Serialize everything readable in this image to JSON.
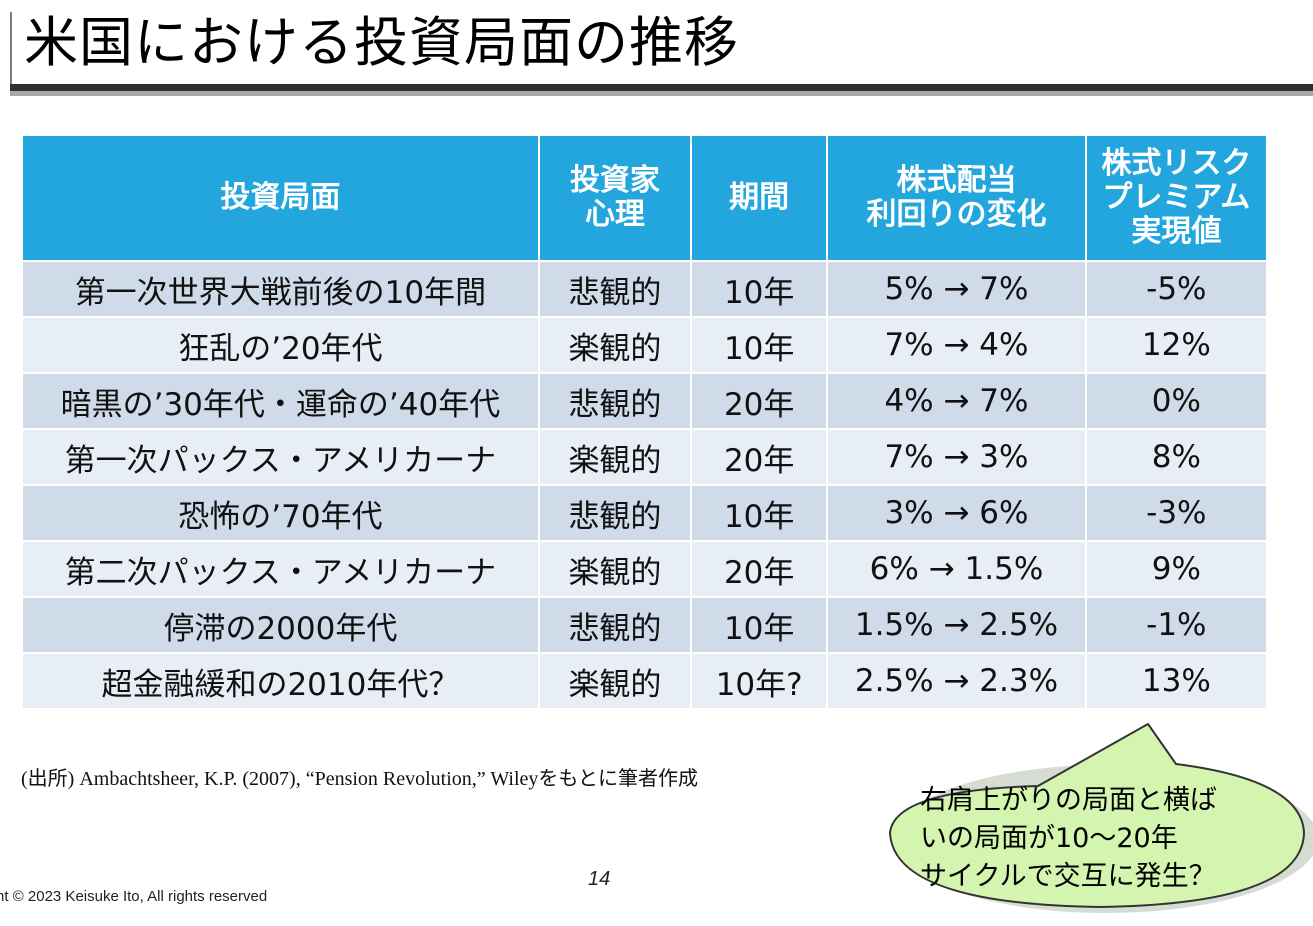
{
  "title": "米国における投資局面の推移",
  "table": {
    "headers": {
      "phase": "投資局面",
      "psychology_l1": "投資家",
      "psychology_l2": "心理",
      "period": "期間",
      "yield_l1": "株式配当",
      "yield_l2": "利回りの変化",
      "premium_l1": "株式リスク",
      "premium_l2": "プレミアム",
      "premium_l3": "実現値"
    },
    "rows": [
      {
        "phase": "第一次世界大戦前後の10年間",
        "psychology": "悲観的",
        "period": "10年",
        "yield_change": "5% → 7%",
        "premium": "-5%"
      },
      {
        "phase": "狂乱の’20年代",
        "psychology": "楽観的",
        "period": "10年",
        "yield_change": "7% → 4%",
        "premium": "12%"
      },
      {
        "phase": "暗黒の’30年代・運命の’40年代",
        "psychology": "悲観的",
        "period": "20年",
        "yield_change": "4% → 7%",
        "premium": "0%"
      },
      {
        "phase": "第一次パックス・アメリカーナ",
        "psychology": "楽観的",
        "period": "20年",
        "yield_change": "7% → 3%",
        "premium": "8%"
      },
      {
        "phase": "恐怖の’70年代",
        "psychology": "悲観的",
        "period": "10年",
        "yield_change": "3% → 6%",
        "premium": "-3%"
      },
      {
        "phase": "第二次パックス・アメリカーナ",
        "psychology": "楽観的",
        "period": "20年",
        "yield_change": "6% → 1.5%",
        "premium": "9%"
      },
      {
        "phase": "停滞の2000年代",
        "psychology": "悲観的",
        "period": "10年",
        "yield_change": "1.5% → 2.5%",
        "premium": "-1%"
      },
      {
        "phase": "超金融緩和の2010年代？",
        "psychology": "楽観的",
        "period": "10年?",
        "yield_change": "2.5% → 2.3%",
        "premium": "13%"
      }
    ]
  },
  "source": "(出所) Ambachtsheer, K.P. (2007), “Pension Revolution,” Wileyをもとに筆者作成",
  "callout": {
    "line1": "右肩上がりの局面と横ば",
    "line2": "いの局面が10～20年",
    "line3": "サイクルで交互に発生？"
  },
  "page_number": "14",
  "copyright": "nt © 2023 Keisuke Ito, All rights reserved",
  "colors": {
    "header_bg": "#22a6dd",
    "row_dark": "#cfdbe9",
    "row_light": "#e8eef6",
    "optimistic_text": "#e21b23",
    "callout_fill": "#d4f5b0"
  }
}
